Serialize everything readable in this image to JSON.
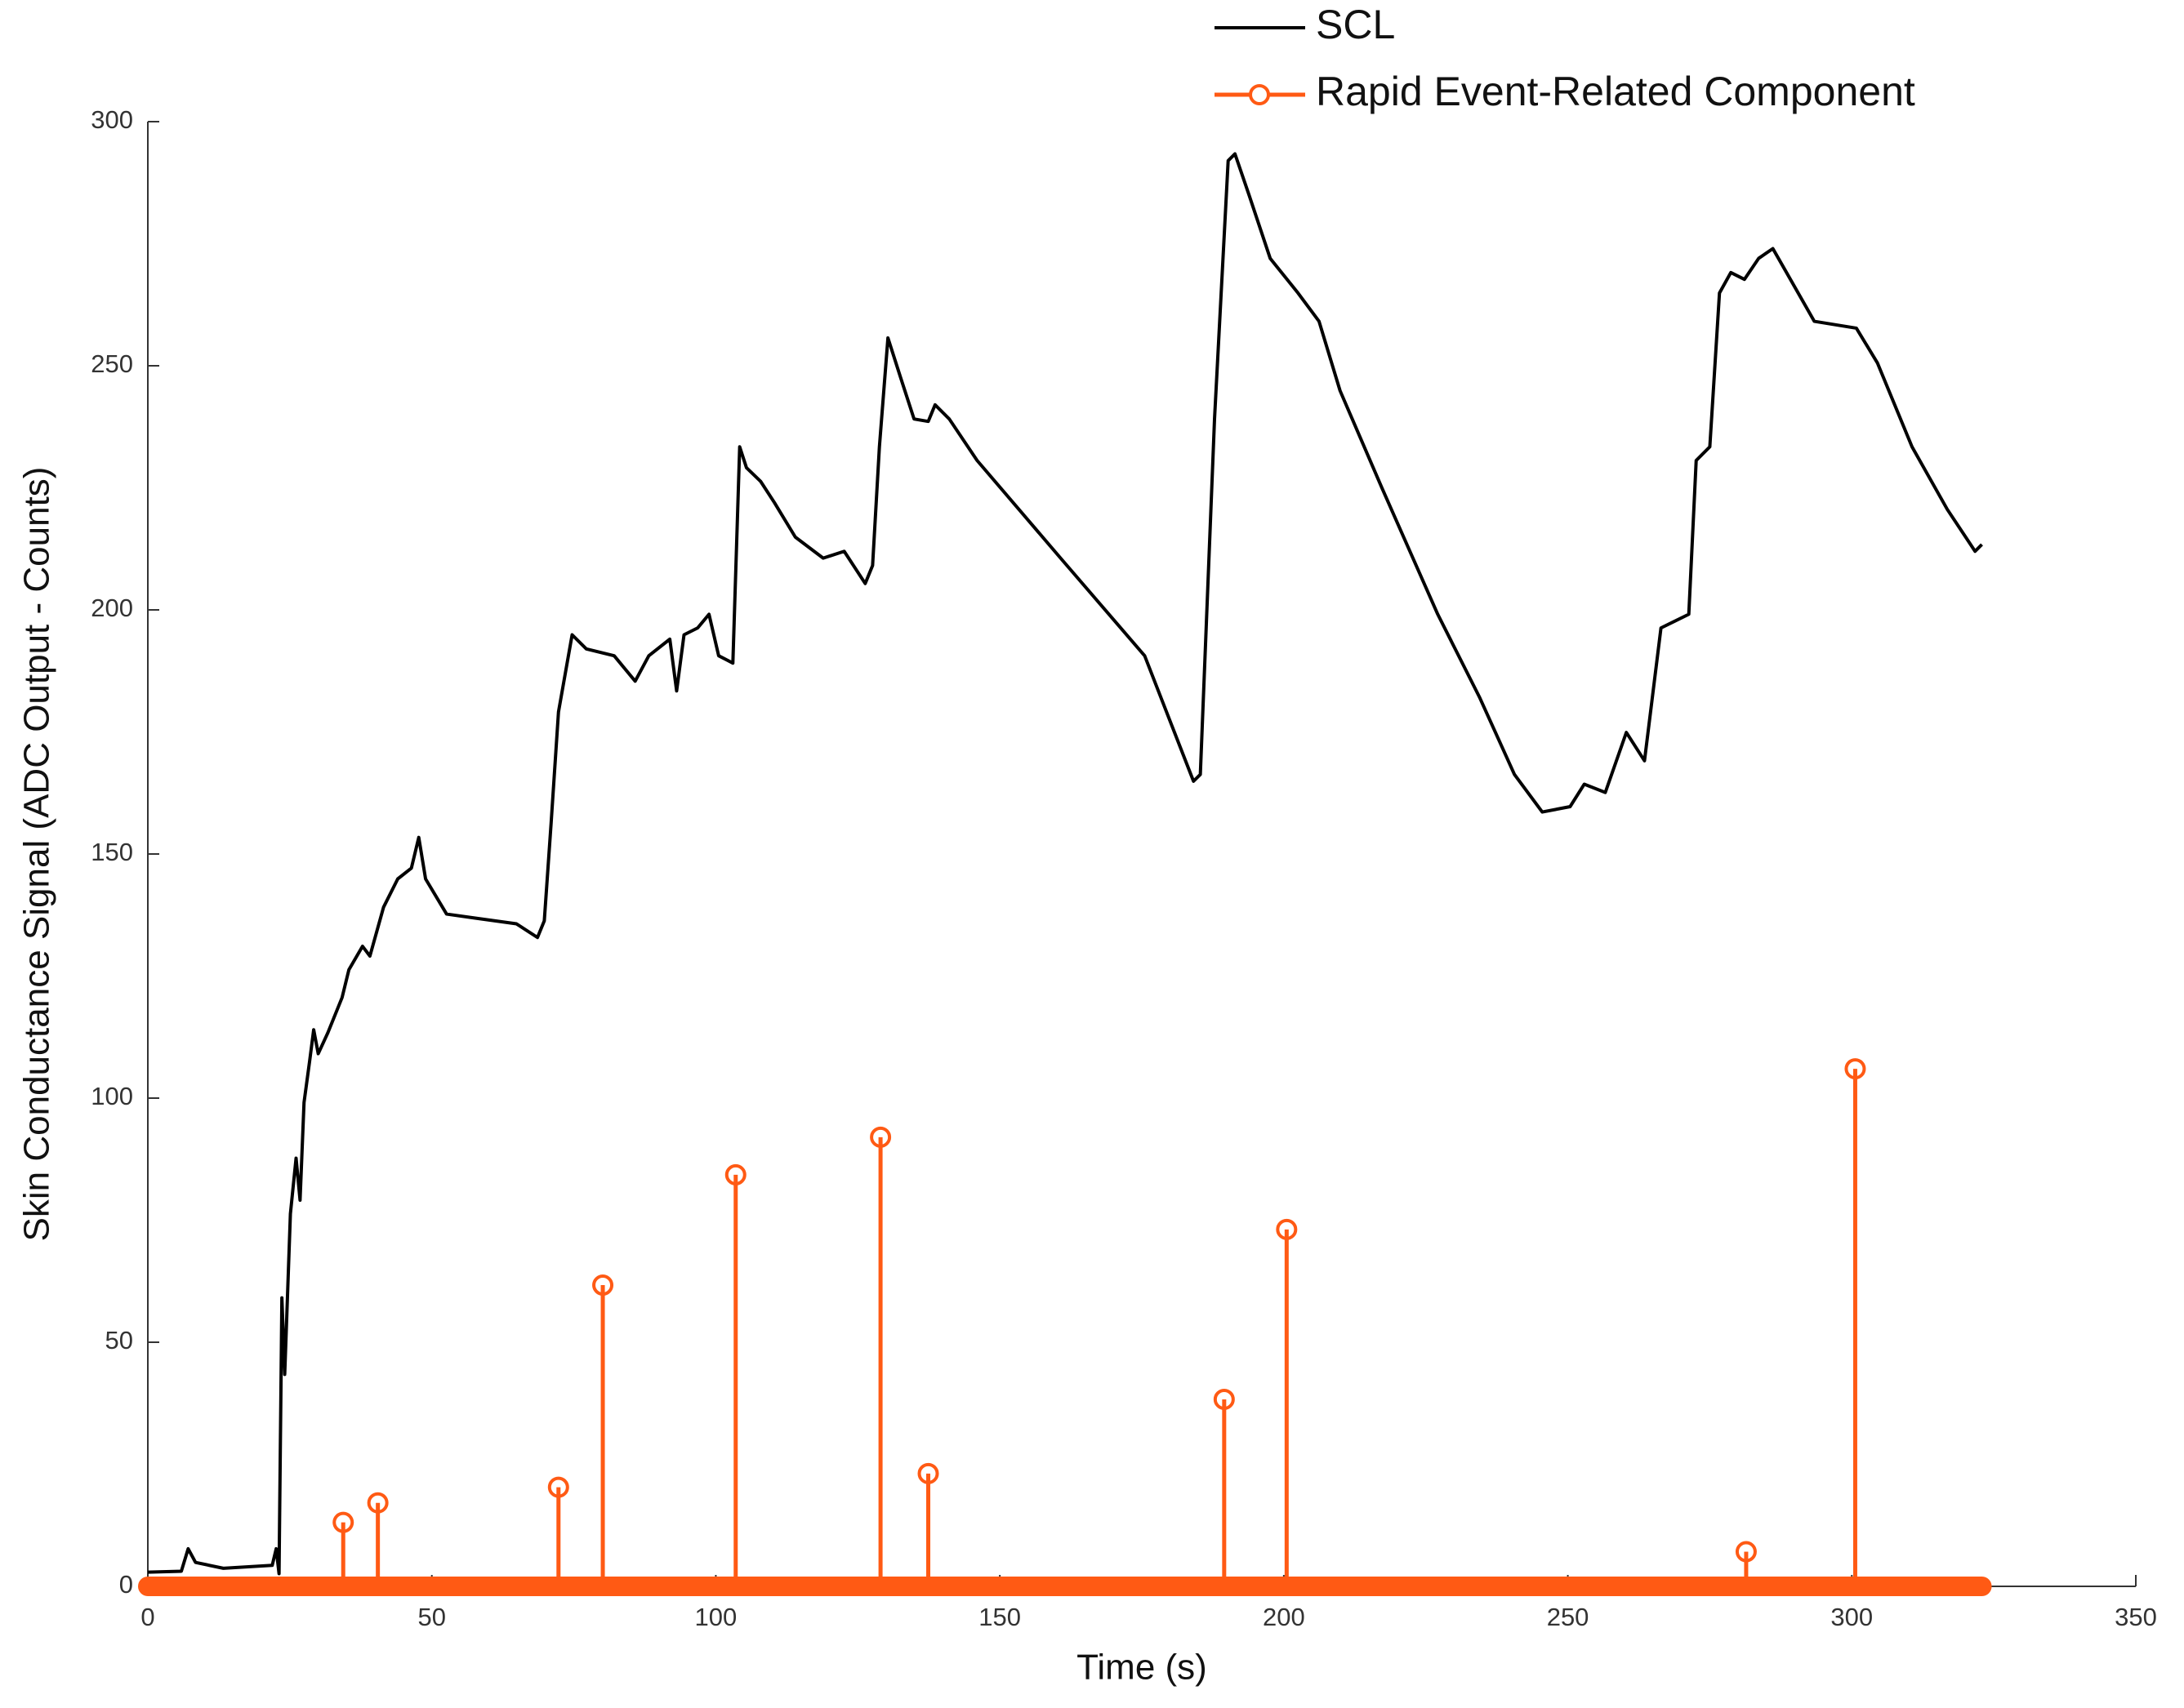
{
  "chart_data": {
    "type": "line",
    "xlabel": "Time (s)",
    "ylabel": "Skin Conductance Signal (ADC Output - Counts)",
    "xlim": [
      0,
      350
    ],
    "xticks": [
      0,
      50,
      100,
      150,
      200,
      250,
      300,
      350
    ],
    "ylim": [
      0,
      300
    ],
    "yticks": [
      0,
      50,
      100,
      150,
      200,
      250,
      300
    ],
    "legend": "top",
    "series": [
      {
        "name": "SCL",
        "color": "#000000",
        "type": "line",
        "x": [
          0,
          5.9,
          7.1,
          8.4,
          13.3,
          21.9,
          22.6,
          23.1,
          23.6,
          24.1,
          25.1,
          26.1,
          26.8,
          27.5,
          28.5,
          29.2,
          30.0,
          31.7,
          34.2,
          35.4,
          37.8,
          39.1,
          41.5,
          44.0,
          46.4,
          47.7,
          48.9,
          52.6,
          57.5,
          64.9,
          68.6,
          69.8,
          71.0,
          72.3,
          74.7,
          77.2,
          82.1,
          85.8,
          88.2,
          91.9,
          93.1,
          94.4,
          96.8,
          98.8,
          100.5,
          103.0,
          104.2,
          105.4,
          107.9,
          110.3,
          114.0,
          118.9,
          122.6,
          126.3,
          127.6,
          128.8,
          130.3,
          132.5,
          134.9,
          137.4,
          138.6,
          141.1,
          146.0,
          160.7,
          175.5,
          184.1,
          185.3,
          187.8,
          190.2,
          191.4,
          193.9,
          197.6,
          202.5,
          206.2,
          209.9,
          217.3,
          227.1,
          234.5,
          240.6,
          245.5,
          250.4,
          252.9,
          256.6,
          260.3,
          263.5,
          266.4,
          271.3,
          272.6,
          275.0,
          276.7,
          278.7,
          281.1,
          283.6,
          286.1,
          288.5,
          293.4,
          300.8,
          304.5,
          310.6,
          316.8,
          321.7,
          322.9
        ],
        "values": [
          2.9,
          3.1,
          7.7,
          4.9,
          3.7,
          4.3,
          7.7,
          2.6,
          59.1,
          43.4,
          76.3,
          87.7,
          79.1,
          99.1,
          107.7,
          114,
          109.1,
          113.4,
          120.6,
          126.3,
          131.1,
          129.1,
          139.1,
          144.9,
          147.1,
          153.4,
          144.9,
          137.7,
          136.9,
          135.7,
          132.9,
          136.3,
          156.3,
          179.1,
          194.9,
          192,
          190.6,
          185.4,
          190.6,
          194,
          183.4,
          194.9,
          196.3,
          199.1,
          190.6,
          189.1,
          233.4,
          229.1,
          226.3,
          222,
          214.9,
          210.6,
          212,
          205.4,
          209.1,
          233.4,
          255.7,
          247.7,
          239.1,
          238.6,
          242,
          239.1,
          230.6,
          210.6,
          190.6,
          164.9,
          166.3,
          239.1,
          292,
          293.4,
          284.9,
          272,
          264.9,
          259.1,
          244.9,
          224.9,
          199.1,
          182,
          166.3,
          158.6,
          159.7,
          164.3,
          162.6,
          174.9,
          169.1,
          196.3,
          199.1,
          230.6,
          233.4,
          264.9,
          269.1,
          267.7,
          272,
          274,
          269.1,
          259.1,
          257.7,
          250.6,
          233.4,
          220.6,
          212,
          213.4
        ]
      },
      {
        "name": "Rapid Event-Related Component",
        "color": "#ff5a14",
        "type": "stem",
        "x": [
          34.4,
          40.5,
          72.3,
          80.1,
          103.5,
          129.0,
          137.4,
          189.5,
          200.5,
          281.4,
          300.6
        ],
        "values": [
          13.1,
          17.1,
          20.3,
          61.7,
          84.3,
          92,
          23.1,
          38.3,
          73.1,
          7.1,
          106
        ]
      }
    ]
  }
}
